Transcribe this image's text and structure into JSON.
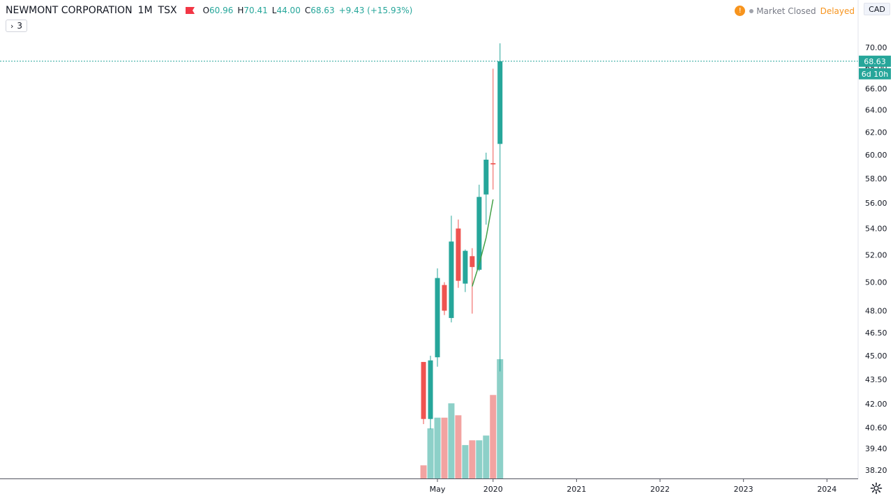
{
  "header": {
    "symbol": "NEWMONT CORPORATION",
    "interval": "1M",
    "exchange": "TSX",
    "ohlc": [
      {
        "label": "O",
        "value": "60.96"
      },
      {
        "label": "H",
        "value": "70.41"
      },
      {
        "label": "L",
        "value": "44.00"
      },
      {
        "label": "C",
        "value": "68.63"
      }
    ],
    "change": "+9.43 (+15.93%)",
    "flag_icon": "canada-flag-icon",
    "flag_color": "#f23645"
  },
  "indicators_toggle": {
    "label": "3"
  },
  "status": {
    "warning_icon_text": "!",
    "market": "Market Closed",
    "delayed": "Delayed"
  },
  "currency": "CAD",
  "colors": {
    "up": "#26a69a",
    "down": "#ef5350",
    "up_volume": "#8dd0c8",
    "down_volume": "#f2a3a1",
    "ma": "#43a047",
    "axis_text": "#131722",
    "price_line": "#26a69a"
  },
  "price_labels": {
    "last_price": "68.63",
    "countdown": "6d 10h"
  },
  "chart_data": {
    "type": "candlestick",
    "y_scale": "log",
    "ylim": [
      37.8,
      73.5
    ],
    "y_ticks": [
      "70.00",
      "68.00",
      "66.00",
      "64.00",
      "62.00",
      "60.00",
      "58.00",
      "56.00",
      "54.00",
      "52.00",
      "50.00",
      "48.00",
      "46.50",
      "45.00",
      "43.50",
      "42.00",
      "40.60",
      "39.40",
      "38.20"
    ],
    "x_ticks": [
      "May",
      "2020",
      "2021",
      "2022",
      "2023",
      "2024"
    ],
    "x_tick_dates": [
      "2019-05",
      "2020-01",
      "2021-01",
      "2022-01",
      "2023-01",
      "2024-01"
    ],
    "candles": [
      {
        "date": "2019-03",
        "open": 44.6,
        "high": 44.6,
        "low": 40.8,
        "close": 41.1
      },
      {
        "date": "2019-04",
        "open": 41.1,
        "high": 45.0,
        "low": 40.5,
        "close": 44.7
      },
      {
        "date": "2019-05",
        "open": 44.9,
        "high": 51.0,
        "low": 44.3,
        "close": 50.3
      },
      {
        "date": "2019-06",
        "open": 49.8,
        "high": 50.0,
        "low": 47.7,
        "close": 48.0
      },
      {
        "date": "2019-07",
        "open": 47.5,
        "high": 55.0,
        "low": 47.2,
        "close": 53.0
      },
      {
        "date": "2019-08",
        "open": 54.0,
        "high": 54.7,
        "low": 49.6,
        "close": 50.1
      },
      {
        "date": "2019-09",
        "open": 49.9,
        "high": 52.4,
        "low": 49.3,
        "close": 52.3
      },
      {
        "date": "2019-10",
        "open": 51.9,
        "high": 52.5,
        "low": 47.8,
        "close": 51.1
      },
      {
        "date": "2019-11",
        "open": 50.9,
        "high": 57.5,
        "low": 50.8,
        "close": 56.5
      },
      {
        "date": "2019-12",
        "open": 56.7,
        "high": 60.2,
        "low": 54.3,
        "close": 59.6
      },
      {
        "date": "2020-01",
        "open": 59.3,
        "high": 67.9,
        "low": 57.1,
        "close": 59.2
      },
      {
        "date": "2020-02",
        "open": 60.96,
        "high": 70.41,
        "low": 44.0,
        "close": 68.63
      }
    ],
    "volume_max": 1.0,
    "volume": [
      0.11,
      0.42,
      0.51,
      0.51,
      0.63,
      0.53,
      0.28,
      0.32,
      0.32,
      0.36,
      0.7,
      1.0
    ],
    "moving_average": [
      {
        "date": "2019-10",
        "value": 49.7
      },
      {
        "date": "2019-11",
        "value": 51.3
      },
      {
        "date": "2019-12",
        "value": 53.3
      },
      {
        "date": "2020-01",
        "value": 56.3
      }
    ]
  }
}
